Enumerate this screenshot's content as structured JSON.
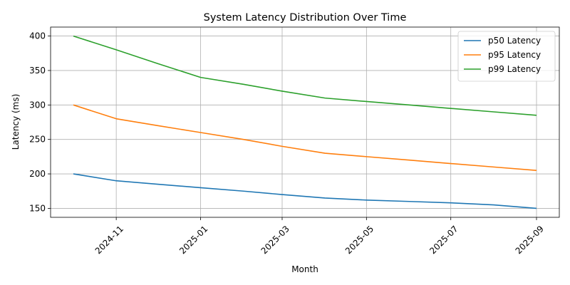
{
  "chart_data": {
    "type": "line",
    "title": "System Latency Distribution Over Time",
    "xlabel": "Month",
    "ylabel": "Latency (ms)",
    "x": [
      "2024-10",
      "2024-11",
      "2024-12",
      "2025-01",
      "2025-02",
      "2025-03",
      "2025-04",
      "2025-05",
      "2025-06",
      "2025-07",
      "2025-08",
      "2025-09"
    ],
    "x_ticks": [
      "2024-11",
      "2025-01",
      "2025-03",
      "2025-05",
      "2025-07",
      "2025-09"
    ],
    "y_ticks": [
      150,
      200,
      250,
      300,
      350,
      400
    ],
    "ylim": [
      137,
      413
    ],
    "grid": true,
    "legend_position": "top-right",
    "series": [
      {
        "name": "p50 Latency",
        "color": "#1f77b4",
        "values": [
          200,
          190,
          185,
          180,
          175,
          170,
          165,
          162,
          160,
          158,
          155,
          150
        ]
      },
      {
        "name": "p95 Latency",
        "color": "#ff7f0e",
        "values": [
          300,
          280,
          270,
          260,
          250,
          240,
          230,
          225,
          220,
          215,
          210,
          205
        ]
      },
      {
        "name": "p99 Latency",
        "color": "#2ca02c",
        "values": [
          400,
          380,
          360,
          340,
          330,
          320,
          310,
          305,
          300,
          295,
          290,
          285
        ]
      }
    ]
  }
}
